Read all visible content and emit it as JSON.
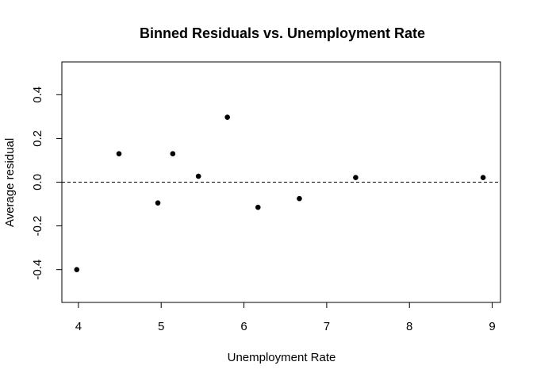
{
  "chart_data": {
    "type": "scatter",
    "title": "Binned Residuals vs. Unemployment Rate",
    "xlabel": "Unemployment Rate",
    "ylabel": "Average residual",
    "xlim": [
      3.8,
      9.1
    ],
    "ylim": [
      -0.55,
      0.55
    ],
    "xticks": [
      4,
      5,
      6,
      7,
      8,
      9
    ],
    "yticks": [
      -0.4,
      -0.2,
      0.0,
      0.2,
      0.4
    ],
    "ytick_labels": [
      "-0.4",
      "-0.2",
      "0.0",
      "0.2",
      "0.4"
    ],
    "xtick_labels": [
      "4",
      "5",
      "6",
      "7",
      "8",
      "9"
    ],
    "reference_line": {
      "y": 0.0,
      "style": "dashed"
    },
    "grid": false,
    "series": [
      {
        "points": [
          {
            "x": 3.98,
            "y": -0.4
          },
          {
            "x": 4.49,
            "y": 0.13
          },
          {
            "x": 4.96,
            "y": -0.095
          },
          {
            "x": 5.14,
            "y": 0.13
          },
          {
            "x": 5.45,
            "y": 0.027
          },
          {
            "x": 5.8,
            "y": 0.297
          },
          {
            "x": 6.17,
            "y": -0.115
          },
          {
            "x": 6.67,
            "y": -0.075
          },
          {
            "x": 7.35,
            "y": 0.021
          },
          {
            "x": 8.89,
            "y": 0.021
          }
        ]
      }
    ],
    "colors": {
      "points": "#000000",
      "axes": "#000000"
    }
  }
}
